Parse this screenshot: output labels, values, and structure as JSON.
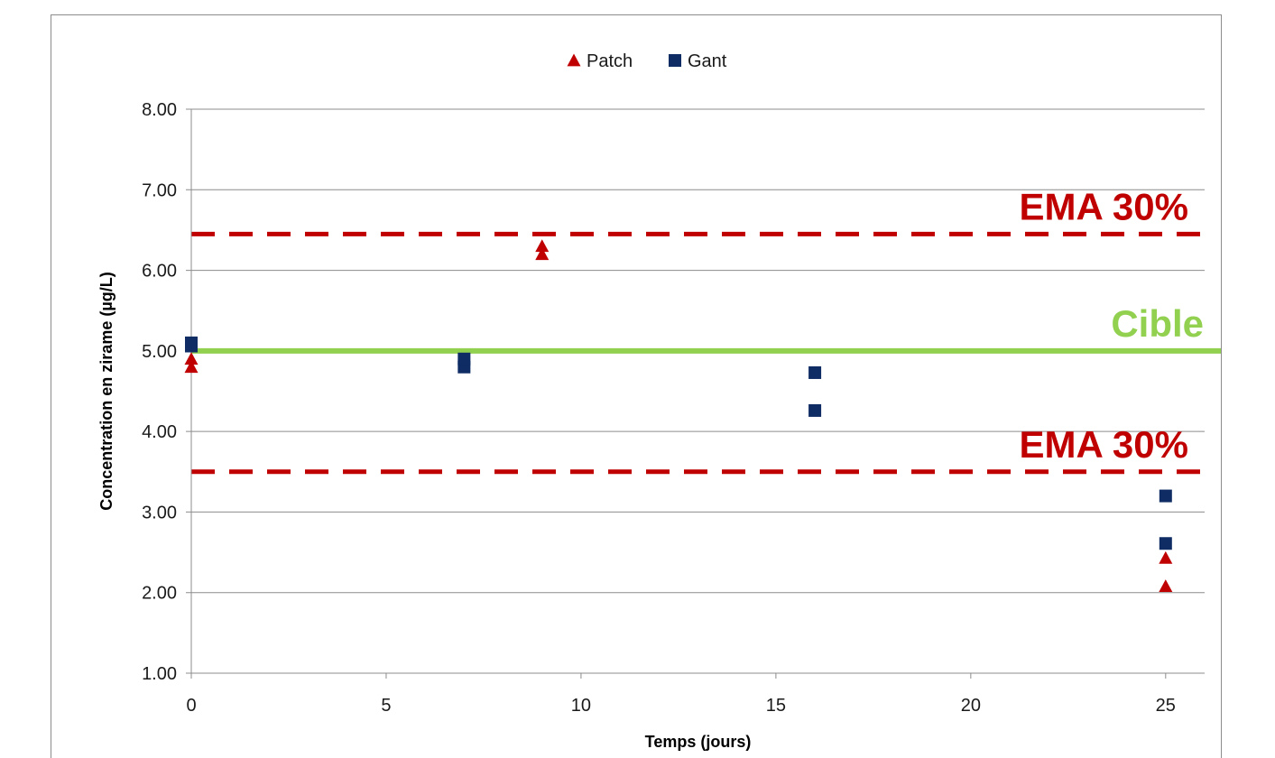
{
  "chart_data": {
    "type": "scatter",
    "title": "",
    "xlabel": "Temps (jours)",
    "ylabel": "Concentration en zirame (µg/L)",
    "xlim": [
      0,
      26
    ],
    "ylim": [
      1.0,
      8.0
    ],
    "x_ticks": [
      "0",
      "5",
      "10",
      "15",
      "20",
      "25"
    ],
    "x_tick_values": [
      0,
      5,
      10,
      15,
      20,
      25
    ],
    "y_ticks": [
      "1.00",
      "2.00",
      "3.00",
      "4.00",
      "5.00",
      "6.00",
      "7.00",
      "8.00"
    ],
    "y_tick_values": [
      1,
      2,
      3,
      4,
      5,
      6,
      7,
      8
    ],
    "grid": "horizontal",
    "legend_position": "top",
    "series": [
      {
        "name": "Patch",
        "marker": "triangle",
        "color": "#c00000",
        "points": [
          [
            0,
            4.8
          ],
          [
            0,
            4.9
          ],
          [
            9,
            6.2
          ],
          [
            9,
            6.3
          ],
          [
            25,
            2.43
          ],
          [
            25,
            2.08
          ]
        ]
      },
      {
        "name": "Gant",
        "marker": "square",
        "color": "#0f2c64",
        "points": [
          [
            0,
            5.1
          ],
          [
            0,
            5.06
          ],
          [
            7,
            4.8
          ],
          [
            7,
            4.9
          ],
          [
            16,
            4.73
          ],
          [
            16,
            4.26
          ],
          [
            25,
            3.2
          ],
          [
            25,
            2.61
          ]
        ]
      }
    ],
    "reference_lines": [
      {
        "label": "EMA 30%",
        "y": 6.45,
        "style": "dashed",
        "color": "#c00000"
      },
      {
        "label": "Cible",
        "y": 5.0,
        "style": "solid",
        "color": "#92d050"
      },
      {
        "label": "EMA 30%",
        "y": 3.5,
        "style": "dashed",
        "color": "#c00000"
      }
    ]
  }
}
